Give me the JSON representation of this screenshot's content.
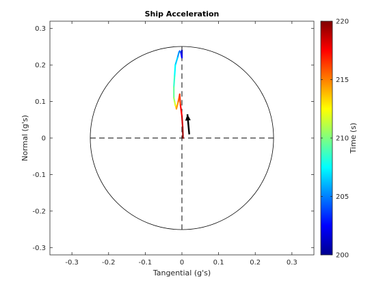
{
  "chart_data": {
    "type": "line",
    "title": "Ship Acceleration",
    "xlabel": "Tangential  (g's)",
    "ylabel": "Normal  (g's)",
    "xlim": [
      -0.36,
      0.36
    ],
    "ylim": [
      -0.32,
      0.32
    ],
    "x_ticks": [
      -0.3,
      -0.2,
      -0.1,
      0,
      0.1,
      0.2,
      0.3
    ],
    "x_tick_labels": [
      "-0.3",
      "-0.2",
      "-0.1",
      "0",
      "0.1",
      "0.2",
      "0.3"
    ],
    "y_ticks": [
      0.3,
      0.2,
      0.1,
      0,
      -0.1,
      -0.2,
      -0.3
    ],
    "y_tick_labels": [
      "0.3",
      "0.2",
      "0.1",
      "0",
      "-0.1",
      "-0.2",
      "-0.3"
    ],
    "grid": false,
    "reference_circle_radius": 0.25,
    "crosshair": "dashed",
    "colormap": "jet",
    "colorbar": {
      "label": "Time  (s)",
      "range": [
        200,
        220
      ],
      "ticks": [
        200,
        205,
        210,
        215,
        220
      ],
      "tick_labels": [
        "200",
        "205",
        "210",
        "215",
        "220"
      ]
    },
    "trajectory": {
      "t": [
        200,
        202,
        203,
        204,
        205,
        206,
        207,
        208,
        209,
        210,
        211,
        212,
        213,
        214,
        215,
        216,
        217,
        218,
        219,
        220
      ],
      "x": [
        0.0,
        0.0,
        -0.003,
        -0.006,
        -0.008,
        -0.012,
        -0.018,
        -0.02,
        -0.022,
        -0.022,
        -0.02,
        -0.018,
        -0.016,
        -0.015,
        -0.01,
        -0.006,
        -0.004,
        0.0,
        0.002,
        0.003
      ],
      "y": [
        0.24,
        0.22,
        0.235,
        0.238,
        0.235,
        0.22,
        0.2,
        0.17,
        0.14,
        0.11,
        0.1,
        0.09,
        0.085,
        0.08,
        0.1,
        0.12,
        0.09,
        0.06,
        0.03,
        0.0
      ]
    },
    "current_vector": {
      "from": [
        0.02,
        0.01
      ],
      "to": [
        0.015,
        0.065
      ],
      "color": "#000000"
    }
  }
}
